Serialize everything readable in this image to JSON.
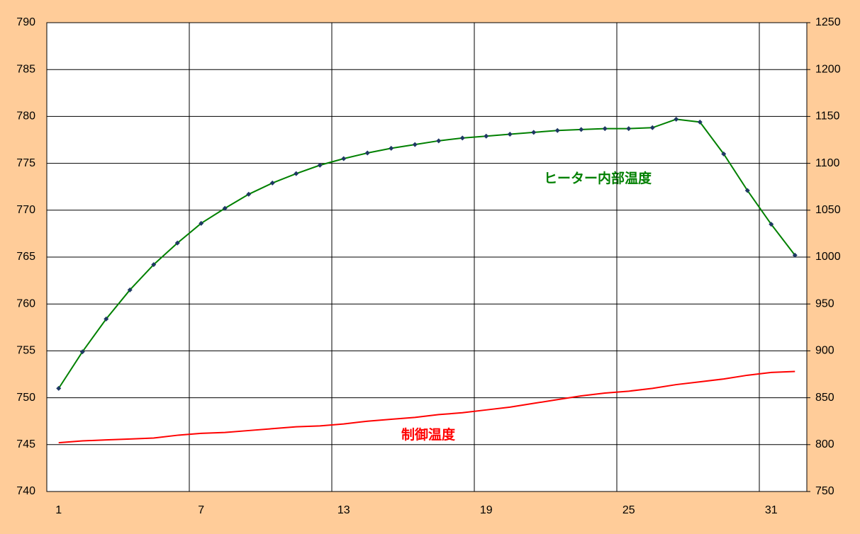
{
  "chart_data": {
    "type": "line",
    "categories": [
      1,
      null,
      null,
      null,
      null,
      null,
      7,
      null,
      null,
      null,
      null,
      null,
      13,
      null,
      null,
      null,
      null,
      null,
      19,
      null,
      null,
      null,
      null,
      null,
      25,
      null,
      null,
      null,
      null,
      null,
      31,
      null
    ],
    "series": [
      {
        "name": "ヒーター内部温度",
        "color": "#008000",
        "axis": "y2",
        "marker": "diamond",
        "marker_color": "#1f3864",
        "values": [
          860,
          899,
          934,
          965,
          992,
          1015,
          1036,
          1052,
          1067,
          1079,
          1089,
          1098,
          1105,
          1111,
          1116,
          1120,
          1124,
          1127,
          1129,
          1131,
          1133,
          1135,
          1136,
          1137,
          1137,
          1138,
          1147,
          1144,
          1110,
          1071,
          1035,
          1002
        ]
      },
      {
        "name": "制御温度",
        "color": "#ff0000",
        "axis": "y",
        "values": [
          745.2,
          745.4,
          745.5,
          745.6,
          745.7,
          746.0,
          746.2,
          746.3,
          746.5,
          746.7,
          746.9,
          747.0,
          747.2,
          747.5,
          747.7,
          747.9,
          748.2,
          748.4,
          748.7,
          749.0,
          749.4,
          749.8,
          750.2,
          750.5,
          750.7,
          751.0,
          751.4,
          751.7,
          752.0,
          752.4,
          752.7,
          752.8
        ]
      }
    ],
    "ylim": [
      740,
      790
    ],
    "yticks": [
      740,
      745,
      750,
      755,
      760,
      765,
      770,
      775,
      780,
      785,
      790
    ],
    "y2lim": [
      750,
      1250
    ],
    "y2ticks": [
      750,
      800,
      850,
      900,
      950,
      1000,
      1050,
      1100,
      1150,
      1200,
      1250
    ],
    "grid": true
  }
}
